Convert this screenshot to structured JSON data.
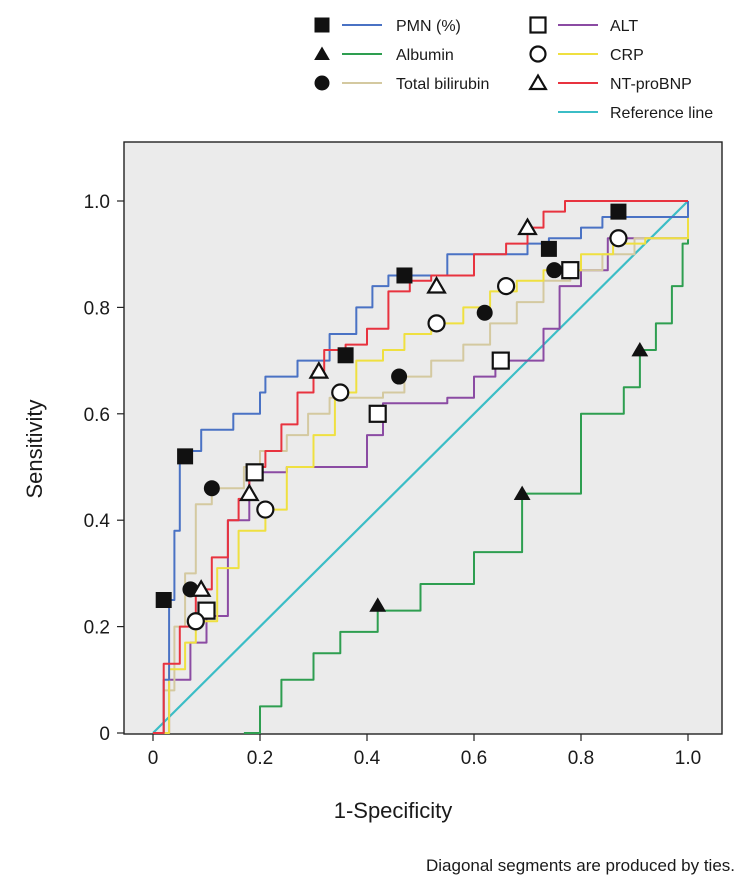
{
  "chart_data": {
    "type": "line",
    "title": "",
    "xlabel": "1-Specificity",
    "ylabel": "Sensitivity",
    "xlim": [
      0,
      1
    ],
    "ylim": [
      0,
      1
    ],
    "x_ticks": [
      "0",
      "0.2",
      "0.4",
      "0.6",
      "0.8",
      "1.0"
    ],
    "y_ticks": [
      "0",
      "0.2",
      "0.4",
      "0.6",
      "0.8",
      "1.0"
    ],
    "grid": false,
    "legend_position": "top",
    "footnote": "Diagonal segments are produced by ties.",
    "series": [
      {
        "name": "PMN (%)",
        "color": "#4a72c4",
        "marker": "filled-square",
        "x": [
          0,
          0.02,
          0.03,
          0.04,
          0.05,
          0.06,
          0.09,
          0.12,
          0.15,
          0.2,
          0.21,
          0.24,
          0.27,
          0.29,
          0.33,
          0.38,
          0.41,
          0.44,
          0.5,
          0.55,
          0.62,
          0.7,
          0.74,
          0.8,
          0.84,
          0.88,
          0.94,
          1.0
        ],
        "y": [
          0,
          0.1,
          0.25,
          0.38,
          0.52,
          0.53,
          0.57,
          0.57,
          0.6,
          0.64,
          0.67,
          0.67,
          0.7,
          0.7,
          0.75,
          0.8,
          0.84,
          0.86,
          0.86,
          0.9,
          0.9,
          0.92,
          0.93,
          0.95,
          0.97,
          0.97,
          0.97,
          1.0
        ],
        "marker_points": [
          [
            0.02,
            0.25
          ],
          [
            0.06,
            0.52
          ],
          [
            0.36,
            0.71
          ],
          [
            0.47,
            0.86
          ],
          [
            0.74,
            0.91
          ],
          [
            0.87,
            0.98
          ]
        ]
      },
      {
        "name": "Albumin",
        "color": "#2e9e50",
        "marker": "filled-triangle",
        "x": [
          0.17,
          0.2,
          0.24,
          0.3,
          0.35,
          0.42,
          0.5,
          0.6,
          0.69,
          0.8,
          0.88,
          0.91,
          0.94,
          0.97,
          0.99,
          1.0
        ],
        "y": [
          0,
          0.05,
          0.1,
          0.15,
          0.19,
          0.23,
          0.28,
          0.34,
          0.45,
          0.6,
          0.65,
          0.72,
          0.77,
          0.84,
          0.92,
          1.0
        ],
        "marker_points": [
          [
            0.42,
            0.24
          ],
          [
            0.69,
            0.45
          ],
          [
            0.91,
            0.72
          ]
        ]
      },
      {
        "name": "Total bilirubin",
        "color": "#d4c9a0",
        "marker": "filled-circle",
        "x": [
          0,
          0.02,
          0.04,
          0.06,
          0.08,
          0.11,
          0.13,
          0.17,
          0.2,
          0.25,
          0.29,
          0.33,
          0.38,
          0.43,
          0.47,
          0.52,
          0.58,
          0.63,
          0.68,
          0.73,
          0.78,
          0.84,
          0.9,
          1.0
        ],
        "y": [
          0,
          0.08,
          0.2,
          0.3,
          0.43,
          0.46,
          0.46,
          0.5,
          0.53,
          0.56,
          0.6,
          0.63,
          0.63,
          0.64,
          0.67,
          0.7,
          0.73,
          0.77,
          0.81,
          0.85,
          0.87,
          0.9,
          0.93,
          1.0
        ],
        "marker_points": [
          [
            0.07,
            0.27
          ],
          [
            0.11,
            0.46
          ],
          [
            0.46,
            0.67
          ],
          [
            0.62,
            0.79
          ],
          [
            0.75,
            0.87
          ]
        ]
      },
      {
        "name": "ALT",
        "color": "#8b4ba3",
        "marker": "open-square",
        "x": [
          0,
          0.03,
          0.07,
          0.1,
          0.14,
          0.18,
          0.2,
          0.25,
          0.3,
          0.36,
          0.4,
          0.43,
          0.5,
          0.55,
          0.6,
          0.64,
          0.69,
          0.73,
          0.76,
          0.8,
          0.85,
          0.92,
          1.0
        ],
        "y": [
          0,
          0.1,
          0.17,
          0.22,
          0.4,
          0.49,
          0.49,
          0.5,
          0.5,
          0.5,
          0.56,
          0.62,
          0.62,
          0.63,
          0.67,
          0.7,
          0.7,
          0.76,
          0.84,
          0.87,
          0.93,
          0.93,
          1.0
        ],
        "marker_points": [
          [
            0.1,
            0.23
          ],
          [
            0.19,
            0.49
          ],
          [
            0.42,
            0.6
          ],
          [
            0.65,
            0.7
          ],
          [
            0.78,
            0.87
          ]
        ]
      },
      {
        "name": "CRP",
        "color": "#efe040",
        "marker": "open-circle",
        "x": [
          0,
          0.03,
          0.06,
          0.08,
          0.12,
          0.16,
          0.21,
          0.25,
          0.3,
          0.34,
          0.38,
          0.43,
          0.47,
          0.52,
          0.58,
          0.63,
          0.68,
          0.73,
          0.8,
          0.86,
          0.92,
          1.0
        ],
        "y": [
          0,
          0.12,
          0.17,
          0.21,
          0.31,
          0.38,
          0.42,
          0.5,
          0.56,
          0.64,
          0.7,
          0.72,
          0.75,
          0.77,
          0.8,
          0.83,
          0.85,
          0.87,
          0.9,
          0.92,
          0.93,
          1.0
        ],
        "marker_points": [
          [
            0.08,
            0.21
          ],
          [
            0.21,
            0.42
          ],
          [
            0.35,
            0.64
          ],
          [
            0.53,
            0.77
          ],
          [
            0.66,
            0.84
          ],
          [
            0.87,
            0.93
          ]
        ]
      },
      {
        "name": "NT-proBNP",
        "color": "#e8333f",
        "marker": "open-triangle",
        "x": [
          0,
          0.02,
          0.05,
          0.08,
          0.11,
          0.14,
          0.16,
          0.18,
          0.21,
          0.24,
          0.27,
          0.3,
          0.32,
          0.36,
          0.4,
          0.44,
          0.48,
          0.52,
          0.6,
          0.66,
          0.7,
          0.73,
          0.77,
          0.82,
          0.88,
          0.95,
          1.0
        ],
        "y": [
          0,
          0.13,
          0.2,
          0.27,
          0.33,
          0.4,
          0.44,
          0.5,
          0.53,
          0.58,
          0.64,
          0.68,
          0.72,
          0.73,
          0.76,
          0.83,
          0.85,
          0.86,
          0.9,
          0.92,
          0.95,
          0.98,
          1.0,
          1.0,
          1.0,
          1.0,
          1.0
        ],
        "marker_points": [
          [
            0.09,
            0.27
          ],
          [
            0.18,
            0.45
          ],
          [
            0.31,
            0.68
          ],
          [
            0.53,
            0.84
          ],
          [
            0.7,
            0.95
          ]
        ]
      },
      {
        "name": "Reference line",
        "color": "#3bbdc6",
        "marker": "none",
        "x": [
          0,
          1
        ],
        "y": [
          0,
          1
        ],
        "marker_points": []
      }
    ]
  }
}
